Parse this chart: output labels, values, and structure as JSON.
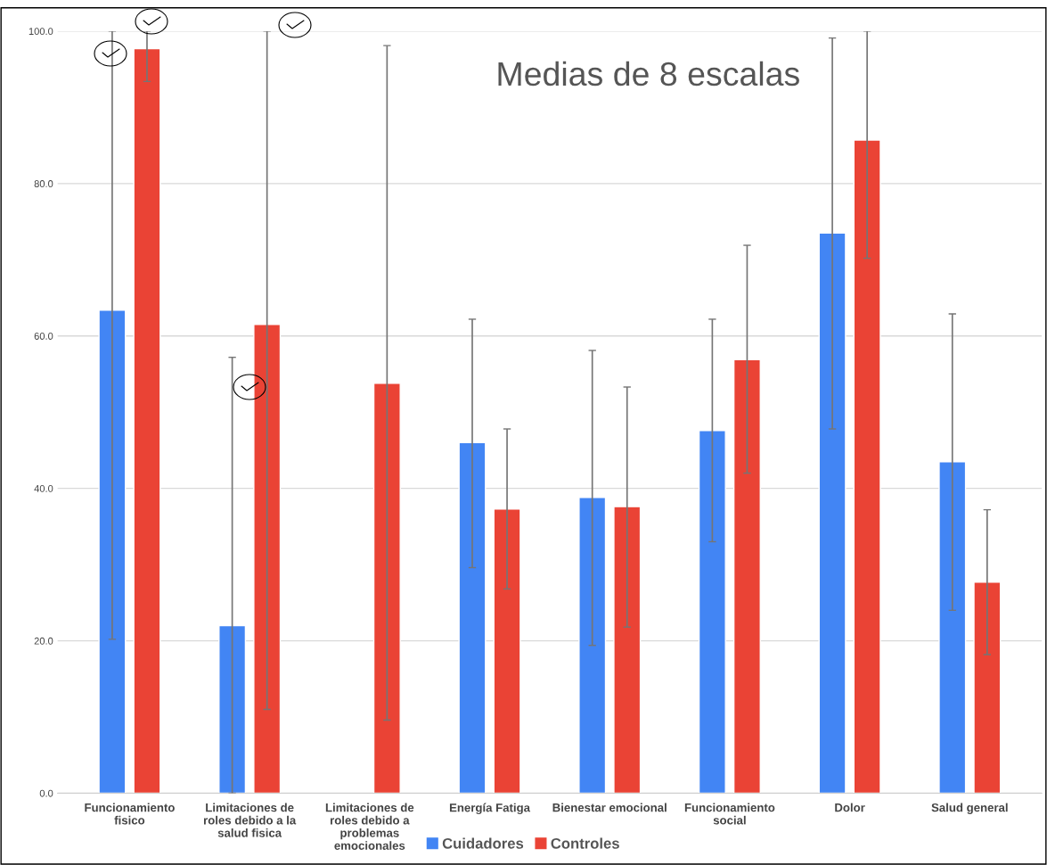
{
  "chart_data": {
    "type": "bar",
    "title": "Medias de 8 escalas",
    "categories": [
      "Funcionamiento fisico",
      "Limitaciones de roles debido a la salud fisica",
      "Limitaciones de roles debido a problemas emocionales",
      "Energía Fatiga",
      "Bienestar emocional",
      "Funcionamiento social",
      "Dolor",
      "Salud general"
    ],
    "series": [
      {
        "name": "Cuidadores",
        "color": "#4285f4",
        "values": [
          63.4,
          22.0,
          null,
          46.0,
          38.8,
          47.6,
          73.5,
          43.5
        ],
        "errors": [
          [
            20.2,
            100
          ],
          [
            0,
            57.2
          ],
          null,
          [
            29.6,
            62.2
          ],
          [
            19.4,
            58.1
          ],
          [
            33.0,
            62.2
          ],
          [
            47.8,
            99.1
          ],
          [
            24.0,
            62.9
          ]
        ]
      },
      {
        "name": "Controles",
        "color": "#ea4335",
        "values": [
          97.7,
          61.5,
          53.8,
          37.3,
          37.6,
          56.9,
          85.7,
          27.7
        ],
        "errors": [
          [
            93.4,
            100
          ],
          [
            11.0,
            100
          ],
          [
            9.6,
            98.1
          ],
          [
            26.8,
            47.8
          ],
          [
            21.8,
            53.3
          ],
          [
            42.0,
            71.9
          ],
          [
            70.2,
            100
          ],
          [
            18.2,
            37.2
          ]
        ]
      }
    ],
    "ylim": [
      0,
      100
    ],
    "yticks": [
      {
        "value": 0,
        "label": "0.0"
      },
      {
        "value": 20,
        "label": "20.0"
      },
      {
        "value": 40,
        "label": "40.0"
      },
      {
        "value": 60,
        "label": "60.0"
      },
      {
        "value": 80,
        "label": "80.0"
      },
      {
        "value": 100,
        "label": "100.0"
      }
    ],
    "grid": "y",
    "legend": "bottom"
  }
}
